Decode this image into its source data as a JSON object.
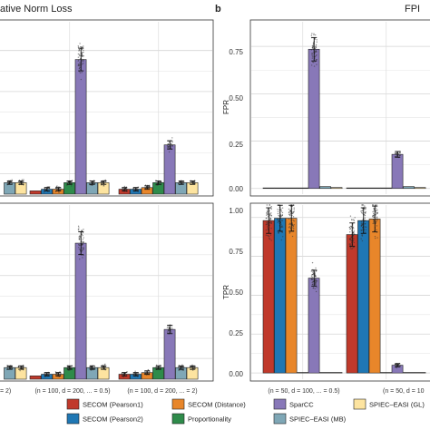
{
  "figure": {
    "panel_a_title": "ative Norm Loss",
    "panel_b_title": "FPI",
    "panel_b_letter": "b"
  },
  "colors": {
    "SECOM (Pearson1)": "#c0392b",
    "SECOM (Pearson2)": "#1f77b4",
    "SECOM (Distance)": "#e8862a",
    "Proportionality": "#2e8b4a",
    "SparCC": "#8878b8",
    "SPIEC-EASI (MB)": "#7fa7b6",
    "SPIEC-EASI (GL)": "#fde4a0",
    "panel_bg": "#ffffff",
    "strip_bg": "#ebebeb",
    "grid": "#e6e6e6"
  },
  "legend": {
    "items": [
      {
        "label": "SECOM (Pearson1)"
      },
      {
        "label": "SECOM (Distance)"
      },
      {
        "label": "SparCC"
      },
      {
        "label": "SPIEC–EASI (GL)"
      },
      {
        "label": "SECOM (Pearson2)"
      },
      {
        "label": "Proportionality"
      },
      {
        "label": "SPIEC–EASI (MB)"
      }
    ],
    "placement": "bottom"
  },
  "chart_data": [
    {
      "type": "bar",
      "panel": "a-top",
      "methods": [
        "SECOM (Pearson1)",
        "SECOM (Pearson2)",
        "SECOM (Distance)",
        "Proportionality",
        "SparCC",
        "SPIEC-EASI (MB)",
        "SPIEC-EASI (GL)"
      ],
      "groups": [
        {
          "values": [
            null,
            null,
            null,
            null,
            null,
            0.07,
            0.07
          ]
        },
        {
          "values": [
            0.02,
            0.03,
            0.03,
            0.07,
            0.82,
            0.07,
            0.07
          ]
        },
        {
          "values": [
            0.03,
            0.03,
            0.04,
            0.07,
            0.3,
            0.07,
            0.07
          ]
        }
      ],
      "ylim": [
        0,
        1.05
      ]
    },
    {
      "type": "bar",
      "panel": "a-bottom",
      "methods": [
        "SECOM (Pearson1)",
        "SECOM (Pearson2)",
        "SECOM (Distance)",
        "Proportionality",
        "SparCC",
        "SPIEC-EASI (MB)",
        "SPIEC-EASI (GL)"
      ],
      "groups": [
        {
          "values": [
            null,
            null,
            null,
            null,
            null,
            0.07,
            0.07
          ]
        },
        {
          "values": [
            0.02,
            0.03,
            0.03,
            0.07,
            0.82,
            0.07,
            0.07
          ]
        },
        {
          "values": [
            0.03,
            0.03,
            0.04,
            0.07,
            0.3,
            0.07,
            0.07
          ]
        }
      ],
      "xticks": [
        "= 2)",
        "(n = 100, d = 200, ... = 0.5)",
        "(n = 100, d = 200, ... = 2)"
      ],
      "ylim": [
        0,
        1.05
      ]
    },
    {
      "type": "bar",
      "panel": "b-top",
      "ylabel": "FPR",
      "methods": [
        "SECOM (Pearson1)",
        "SECOM (Pearson2)",
        "SECOM (Distance)",
        "Proportionality",
        "SparCC",
        "SPIEC-EASI (MB)",
        "SPIEC-EASI (GL)"
      ],
      "groups": [
        {
          "values": [
            0.0,
            0.0,
            0.0,
            0.0,
            0.735,
            0.01,
            0.005
          ]
        },
        {
          "values": [
            0.0,
            0.0,
            0.0,
            0.0,
            0.18,
            0.01,
            0.005
          ]
        }
      ],
      "yticks": [
        "0.00",
        "0.25",
        "0.50",
        "0.75"
      ],
      "ylim": [
        -0.03,
        0.88
      ]
    },
    {
      "type": "bar",
      "panel": "b-bottom",
      "ylabel": "TPR",
      "methods": [
        "SECOM (Pearson1)",
        "SECOM (Pearson2)",
        "SECOM (Distance)",
        "Proportionality",
        "SparCC",
        "SPIEC-EASI (MB)",
        "SPIEC-EASI (GL)"
      ],
      "groups": [
        {
          "values": [
            0.98,
            0.995,
            0.995,
            0.0,
            0.61,
            0.0,
            0.0
          ]
        },
        {
          "values": [
            0.89,
            0.98,
            0.99,
            0.0,
            0.05,
            0.0,
            0.0
          ]
        }
      ],
      "yticks": [
        "0.00",
        "0.25",
        "0.50",
        "0.75",
        "1.00"
      ],
      "xticks": [
        "(n = 50, d = 100, ... = 0.5)",
        "(n = 50, d = 10"
      ],
      "ylim": [
        -0.04,
        1.08
      ]
    }
  ]
}
